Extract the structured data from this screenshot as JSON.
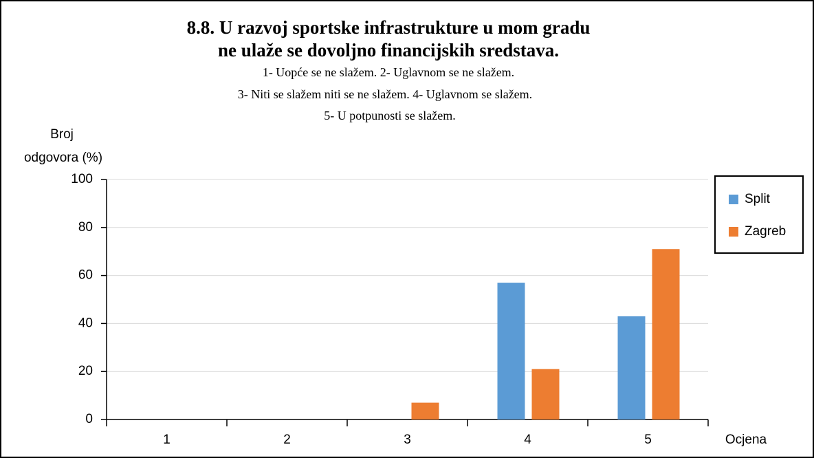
{
  "chart_data": {
    "type": "bar",
    "title": [
      "8.8. U razvoj sportske infrastrukture u mom gradu",
      "ne ulaže se dovoljno financijskih sredstava."
    ],
    "subtitle": [
      "1- Uopće se ne slažem. 2- Uglavnom se ne slažem.",
      "3- Niti se slažem niti se ne slažem. 4- Uglavnom se slažem.",
      "5- U potpunosti se slažem."
    ],
    "y_label": [
      "Broj",
      "odgovora (%)"
    ],
    "x_label": "Ocjena",
    "categories": [
      "1",
      "2",
      "3",
      "4",
      "5"
    ],
    "series": [
      {
        "name": "Split",
        "color": "#5b9bd5",
        "values": [
          0,
          0,
          0,
          57,
          43
        ]
      },
      {
        "name": "Zagreb",
        "color": "#ed7d31",
        "values": [
          0,
          0,
          7,
          21,
          71
        ]
      }
    ],
    "ylim": [
      0,
      100
    ],
    "yticks": [
      0,
      20,
      40,
      60,
      80,
      100
    ],
    "grid": true,
    "legend": "right"
  }
}
